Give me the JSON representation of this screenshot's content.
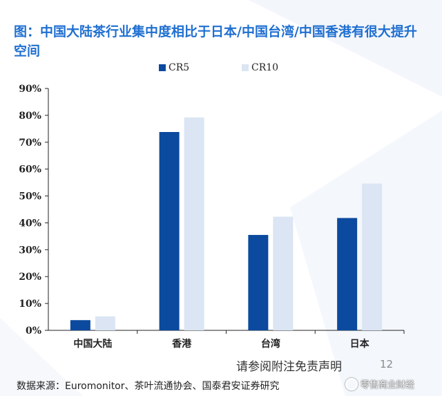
{
  "title": "图：中国大陆茶行业集中度相比于日本/中国台湾/中国香港有很大提升空间",
  "chart_data": {
    "type": "bar",
    "categories": [
      "中国大陆",
      "香港",
      "台湾",
      "日本"
    ],
    "series": [
      {
        "name": "CR5",
        "values": [
          3.8,
          73.8,
          35.5,
          41.8
        ],
        "color": "#0b4a9e"
      },
      {
        "name": "CR10",
        "values": [
          5.2,
          79.2,
          42.3,
          54.6
        ],
        "color": "#dbe5f3"
      }
    ],
    "y_ticks": [
      "0%",
      "10%",
      "20%",
      "30%",
      "40%",
      "50%",
      "60%",
      "70%",
      "80%",
      "90%"
    ],
    "ylim": [
      0,
      90
    ],
    "legend_position": "top-center",
    "grid": false
  },
  "disclaimer": "请参阅附注免责声明",
  "page_number": "12",
  "source": "数据来源：Euromonitor、茶叶流通协会、国泰君安证券研究",
  "watermark": "零售商业财经"
}
